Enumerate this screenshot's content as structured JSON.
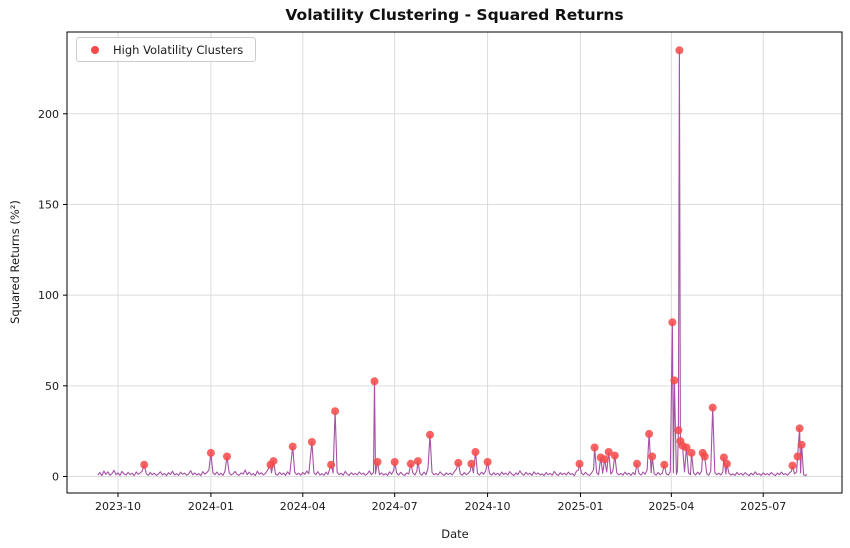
{
  "chart_data": {
    "type": "line",
    "title": "Volatility Clustering - Squared Returns",
    "xlabel": "Date",
    "ylabel": "Squared Returns (%²)",
    "legend": [
      {
        "label": "High Volatility Clusters",
        "marker": "red-dot"
      }
    ],
    "legend_position": "upper-left",
    "grid": true,
    "colors": {
      "line": "#a551a5",
      "cluster_marker": "#f64949",
      "grid": "#dcdcdc",
      "spine": "#000000",
      "tick_text": "#1a1a1a"
    },
    "x_axis": {
      "epoch": "2023-09-01",
      "tick_labels": [
        "2023-10",
        "2024-01",
        "2024-04",
        "2024-07",
        "2024-10",
        "2025-01",
        "2025-04",
        "2025-07"
      ],
      "tick_days": [
        30,
        122,
        213,
        304,
        396,
        488,
        578,
        669
      ],
      "lim_days": [
        -20.5,
        747
      ]
    },
    "y_axis": {
      "ticks": [
        0,
        50,
        100,
        150,
        200
      ],
      "lim": [
        -9.1,
        245.1
      ]
    },
    "cluster_points_day_value": [
      [
        56,
        6.5
      ],
      [
        122,
        13
      ],
      [
        138,
        11
      ],
      [
        181,
        6.5
      ],
      [
        184,
        8.5
      ],
      [
        203,
        16.5
      ],
      [
        222,
        19
      ],
      [
        241,
        6.5
      ],
      [
        245,
        36
      ],
      [
        284,
        52.5
      ],
      [
        287,
        8
      ],
      [
        304,
        8
      ],
      [
        320,
        7
      ],
      [
        327,
        8.5
      ],
      [
        339,
        23
      ],
      [
        367,
        7.5
      ],
      [
        380,
        7
      ],
      [
        384,
        13.5
      ],
      [
        396,
        8
      ],
      [
        487,
        7
      ],
      [
        502,
        16
      ],
      [
        508,
        10.5
      ],
      [
        512,
        9.5
      ],
      [
        516,
        13.5
      ],
      [
        522,
        11.5
      ],
      [
        544,
        7
      ],
      [
        556,
        23.5
      ],
      [
        559,
        11
      ],
      [
        571,
        6.5
      ],
      [
        579,
        85
      ],
      [
        581,
        53
      ],
      [
        585,
        25.5
      ],
      [
        586,
        235
      ],
      [
        587,
        19.5
      ],
      [
        589,
        17
      ],
      [
        593,
        16
      ],
      [
        598,
        13
      ],
      [
        609,
        13
      ],
      [
        611,
        11
      ],
      [
        619,
        38
      ],
      [
        630,
        10.5
      ],
      [
        633,
        7
      ],
      [
        698,
        6
      ],
      [
        703,
        11
      ],
      [
        705,
        26.5
      ],
      [
        707,
        17.5
      ]
    ],
    "line_points_day_value": [
      [
        10,
        0.8
      ],
      [
        12,
        2.2
      ],
      [
        14,
        0.5
      ],
      [
        16,
        3.0
      ],
      [
        18,
        1.2
      ],
      [
        20,
        2.6
      ],
      [
        22,
        0.7
      ],
      [
        24,
        1.5
      ],
      [
        26,
        3.4
      ],
      [
        28,
        1.0
      ],
      [
        30,
        2.0
      ],
      [
        32,
        0.6
      ],
      [
        34,
        2.8
      ],
      [
        36,
        1.4
      ],
      [
        38,
        0.8
      ],
      [
        40,
        2.3
      ],
      [
        42,
        1.0
      ],
      [
        44,
        1.8
      ],
      [
        46,
        0.5
      ],
      [
        48,
        2.5
      ],
      [
        50,
        1.2
      ],
      [
        52,
        2.0
      ],
      [
        54,
        3.0
      ],
      [
        56,
        6.5
      ],
      [
        58,
        1.5
      ],
      [
        60,
        0.7
      ],
      [
        62,
        2.2
      ],
      [
        64,
        1.0
      ],
      [
        66,
        1.8
      ],
      [
        68,
        0.6
      ],
      [
        70,
        1.4
      ],
      [
        72,
        2.6
      ],
      [
        74,
        0.9
      ],
      [
        76,
        1.7
      ],
      [
        78,
        0.5
      ],
      [
        80,
        2.1
      ],
      [
        82,
        1.1
      ],
      [
        84,
        2.9
      ],
      [
        86,
        0.8
      ],
      [
        88,
        1.6
      ],
      [
        90,
        0.6
      ],
      [
        92,
        2.4
      ],
      [
        94,
        1.2
      ],
      [
        96,
        1.9
      ],
      [
        98,
        0.7
      ],
      [
        100,
        1.5
      ],
      [
        102,
        3.2
      ],
      [
        104,
        1.0
      ],
      [
        106,
        2.0
      ],
      [
        108,
        0.8
      ],
      [
        110,
        1.6
      ],
      [
        112,
        0.5
      ],
      [
        114,
        2.7
      ],
      [
        116,
        1.3
      ],
      [
        118,
        2.2
      ],
      [
        120,
        3.5
      ],
      [
        122,
        13
      ],
      [
        124,
        2.0
      ],
      [
        126,
        1.0
      ],
      [
        128,
        2.5
      ],
      [
        130,
        0.8
      ],
      [
        132,
        1.8
      ],
      [
        134,
        0.6
      ],
      [
        136,
        3.0
      ],
      [
        138,
        11
      ],
      [
        140,
        2.2
      ],
      [
        142,
        0.9
      ],
      [
        144,
        1.5
      ],
      [
        146,
        2.8
      ],
      [
        148,
        1.1
      ],
      [
        150,
        0.7
      ],
      [
        152,
        2.0
      ],
      [
        154,
        1.3
      ],
      [
        156,
        3.6
      ],
      [
        158,
        1.0
      ],
      [
        160,
        2.4
      ],
      [
        162,
        0.8
      ],
      [
        164,
        1.7
      ],
      [
        166,
        0.5
      ],
      [
        168,
        2.9
      ],
      [
        170,
        1.2
      ],
      [
        172,
        2.1
      ],
      [
        174,
        0.9
      ],
      [
        176,
        1.6
      ],
      [
        178,
        3.3
      ],
      [
        181,
        6.5
      ],
      [
        182,
        2.0
      ],
      [
        184,
        8.5
      ],
      [
        186,
        1.4
      ],
      [
        188,
        0.7
      ],
      [
        190,
        2.3
      ],
      [
        192,
        1.0
      ],
      [
        194,
        1.9
      ],
      [
        196,
        0.6
      ],
      [
        198,
        2.6
      ],
      [
        200,
        1.1
      ],
      [
        203,
        16.5
      ],
      [
        205,
        2.4
      ],
      [
        207,
        1.0
      ],
      [
        209,
        1.8
      ],
      [
        211,
        0.7
      ],
      [
        213,
        2.2
      ],
      [
        215,
        1.2
      ],
      [
        217,
        3.0
      ],
      [
        219,
        1.5
      ],
      [
        222,
        19
      ],
      [
        224,
        2.0
      ],
      [
        226,
        1.0
      ],
      [
        228,
        2.7
      ],
      [
        230,
        0.8
      ],
      [
        232,
        1.6
      ],
      [
        234,
        0.6
      ],
      [
        236,
        2.4
      ],
      [
        238,
        1.1
      ],
      [
        241,
        6.5
      ],
      [
        243,
        2.0
      ],
      [
        245,
        36
      ],
      [
        247,
        2.5
      ],
      [
        249,
        1.0
      ],
      [
        251,
        1.8
      ],
      [
        253,
        0.7
      ],
      [
        255,
        2.8
      ],
      [
        257,
        1.3
      ],
      [
        259,
        0.6
      ],
      [
        261,
        2.1
      ],
      [
        263,
        1.0
      ],
      [
        265,
        1.7
      ],
      [
        267,
        0.8
      ],
      [
        269,
        2.5
      ],
      [
        271,
        1.2
      ],
      [
        273,
        1.9
      ],
      [
        275,
        0.7
      ],
      [
        277,
        1.5
      ],
      [
        279,
        3.1
      ],
      [
        281,
        1.0
      ],
      [
        283,
        2.2
      ],
      [
        284,
        52.5
      ],
      [
        285,
        1.5
      ],
      [
        287,
        8
      ],
      [
        289,
        1.0
      ],
      [
        291,
        2.0
      ],
      [
        293,
        0.8
      ],
      [
        295,
        1.6
      ],
      [
        297,
        0.6
      ],
      [
        299,
        2.6
      ],
      [
        301,
        1.2
      ],
      [
        303,
        3.4
      ],
      [
        304,
        8
      ],
      [
        306,
        1.8
      ],
      [
        308,
        0.9
      ],
      [
        310,
        2.3
      ],
      [
        312,
        1.1
      ],
      [
        314,
        0.6
      ],
      [
        316,
        2.0
      ],
      [
        318,
        1.4
      ],
      [
        320,
        7
      ],
      [
        322,
        2.1
      ],
      [
        324,
        0.8
      ],
      [
        326,
        3.0
      ],
      [
        327,
        8.5
      ],
      [
        329,
        1.6
      ],
      [
        331,
        0.7
      ],
      [
        333,
        2.4
      ],
      [
        335,
        1.0
      ],
      [
        337,
        4.5
      ],
      [
        339,
        23
      ],
      [
        341,
        2.2
      ],
      [
        343,
        1.0
      ],
      [
        345,
        1.7
      ],
      [
        347,
        0.8
      ],
      [
        349,
        2.6
      ],
      [
        351,
        1.3
      ],
      [
        353,
        0.6
      ],
      [
        355,
        2.0
      ],
      [
        357,
        1.1
      ],
      [
        359,
        1.8
      ],
      [
        361,
        0.9
      ],
      [
        363,
        2.5
      ],
      [
        365,
        4.0
      ],
      [
        367,
        7.5
      ],
      [
        369,
        1.5
      ],
      [
        371,
        0.7
      ],
      [
        373,
        2.2
      ],
      [
        375,
        1.0
      ],
      [
        377,
        1.8
      ],
      [
        379,
        3.2
      ],
      [
        380,
        7
      ],
      [
        382,
        2.0
      ],
      [
        384,
        13.5
      ],
      [
        386,
        1.8
      ],
      [
        388,
        0.8
      ],
      [
        390,
        2.4
      ],
      [
        392,
        1.2
      ],
      [
        394,
        3.0
      ],
      [
        396,
        8
      ],
      [
        398,
        1.6
      ],
      [
        400,
        0.7
      ],
      [
        402,
        2.1
      ],
      [
        404,
        1.0
      ],
      [
        406,
        1.8
      ],
      [
        408,
        0.6
      ],
      [
        410,
        2.5
      ],
      [
        412,
        1.1
      ],
      [
        414,
        1.9
      ],
      [
        416,
        0.8
      ],
      [
        418,
        2.7
      ],
      [
        420,
        1.3
      ],
      [
        422,
        0.5
      ],
      [
        424,
        2.0
      ],
      [
        426,
        1.0
      ],
      [
        428,
        3.1
      ],
      [
        430,
        1.5
      ],
      [
        432,
        0.7
      ],
      [
        434,
        2.3
      ],
      [
        436,
        1.1
      ],
      [
        438,
        1.8
      ],
      [
        440,
        0.6
      ],
      [
        442,
        2.6
      ],
      [
        444,
        1.2
      ],
      [
        446,
        2.0
      ],
      [
        448,
        0.8
      ],
      [
        450,
        1.5
      ],
      [
        452,
        0.5
      ],
      [
        454,
        2.2
      ],
      [
        456,
        1.0
      ],
      [
        458,
        1.7
      ],
      [
        460,
        0.7
      ],
      [
        462,
        2.8
      ],
      [
        464,
        1.3
      ],
      [
        466,
        0.6
      ],
      [
        468,
        2.1
      ],
      [
        470,
        1.0
      ],
      [
        472,
        1.8
      ],
      [
        474,
        0.8
      ],
      [
        476,
        2.4
      ],
      [
        478,
        1.1
      ],
      [
        480,
        1.6
      ],
      [
        482,
        0.5
      ],
      [
        484,
        2.9
      ],
      [
        486,
        3.5
      ],
      [
        487,
        7
      ],
      [
        489,
        1.8
      ],
      [
        491,
        0.9
      ],
      [
        493,
        2.3
      ],
      [
        495,
        1.1
      ],
      [
        497,
        0.6
      ],
      [
        499,
        2.0
      ],
      [
        501,
        3.8
      ],
      [
        502,
        16
      ],
      [
        504,
        2.2
      ],
      [
        506,
        1.0
      ],
      [
        508,
        10.5
      ],
      [
        510,
        1.8
      ],
      [
        512,
        9.5
      ],
      [
        514,
        2.5
      ],
      [
        516,
        13.5
      ],
      [
        518,
        1.4
      ],
      [
        520,
        2.8
      ],
      [
        522,
        11.5
      ],
      [
        524,
        2.0
      ],
      [
        526,
        0.9
      ],
      [
        528,
        1.7
      ],
      [
        530,
        0.7
      ],
      [
        532,
        2.4
      ],
      [
        534,
        1.1
      ],
      [
        536,
        1.8
      ],
      [
        538,
        0.6
      ],
      [
        540,
        2.2
      ],
      [
        542,
        1.0
      ],
      [
        544,
        7
      ],
      [
        546,
        1.6
      ],
      [
        548,
        0.8
      ],
      [
        550,
        2.5
      ],
      [
        552,
        1.2
      ],
      [
        554,
        3.5
      ],
      [
        556,
        23.5
      ],
      [
        558,
        2.0
      ],
      [
        559,
        11
      ],
      [
        561,
        1.5
      ],
      [
        563,
        0.7
      ],
      [
        565,
        2.2
      ],
      [
        567,
        1.0
      ],
      [
        569,
        1.8
      ],
      [
        571,
        6.5
      ],
      [
        573,
        1.4
      ],
      [
        575,
        0.8
      ],
      [
        577,
        2.6
      ],
      [
        579,
        85
      ],
      [
        580,
        2.0
      ],
      [
        581,
        53
      ],
      [
        583,
        1.2
      ],
      [
        584,
        3.0
      ],
      [
        585,
        25.5
      ],
      [
        586,
        235
      ],
      [
        587,
        19.5
      ],
      [
        588,
        18
      ],
      [
        589,
        17
      ],
      [
        591,
        2.5
      ],
      [
        593,
        16
      ],
      [
        595,
        2.0
      ],
      [
        597,
        1.0
      ],
      [
        598,
        13
      ],
      [
        600,
        1.8
      ],
      [
        602,
        0.8
      ],
      [
        604,
        2.4
      ],
      [
        606,
        1.1
      ],
      [
        608,
        3.2
      ],
      [
        609,
        13
      ],
      [
        611,
        11
      ],
      [
        613,
        1.6
      ],
      [
        615,
        0.7
      ],
      [
        617,
        2.8
      ],
      [
        619,
        38
      ],
      [
        621,
        2.2
      ],
      [
        623,
        1.0
      ],
      [
        625,
        1.8
      ],
      [
        627,
        0.9
      ],
      [
        629,
        2.5
      ],
      [
        630,
        10.5
      ],
      [
        632,
        1.3
      ],
      [
        633,
        7
      ],
      [
        635,
        1.9
      ],
      [
        637,
        0.8
      ],
      [
        639,
        1.5
      ],
      [
        641,
        0.6
      ],
      [
        643,
        2.3
      ],
      [
        645,
        1.0
      ],
      [
        647,
        1.7
      ],
      [
        649,
        0.7
      ],
      [
        651,
        2.1
      ],
      [
        653,
        1.2
      ],
      [
        655,
        0.5
      ],
      [
        657,
        1.8
      ],
      [
        659,
        0.9
      ],
      [
        661,
        2.6
      ],
      [
        663,
        1.1
      ],
      [
        665,
        1.5
      ],
      [
        667,
        0.6
      ],
      [
        669,
        2.0
      ],
      [
        671,
        1.0
      ],
      [
        673,
        1.6
      ],
      [
        675,
        0.8
      ],
      [
        677,
        2.2
      ],
      [
        679,
        1.2
      ],
      [
        681,
        0.5
      ],
      [
        683,
        1.9
      ],
      [
        685,
        1.0
      ],
      [
        687,
        2.4
      ],
      [
        689,
        1.1
      ],
      [
        691,
        1.6
      ],
      [
        693,
        0.7
      ],
      [
        695,
        2.0
      ],
      [
        697,
        3.0
      ],
      [
        698,
        6
      ],
      [
        700,
        1.5
      ],
      [
        702,
        2.5
      ],
      [
        703,
        11
      ],
      [
        705,
        26.5
      ],
      [
        706,
        2.0
      ],
      [
        707,
        17.5
      ],
      [
        709,
        1.0
      ],
      [
        711,
        0.5
      ],
      [
        712,
        1.2
      ]
    ]
  }
}
